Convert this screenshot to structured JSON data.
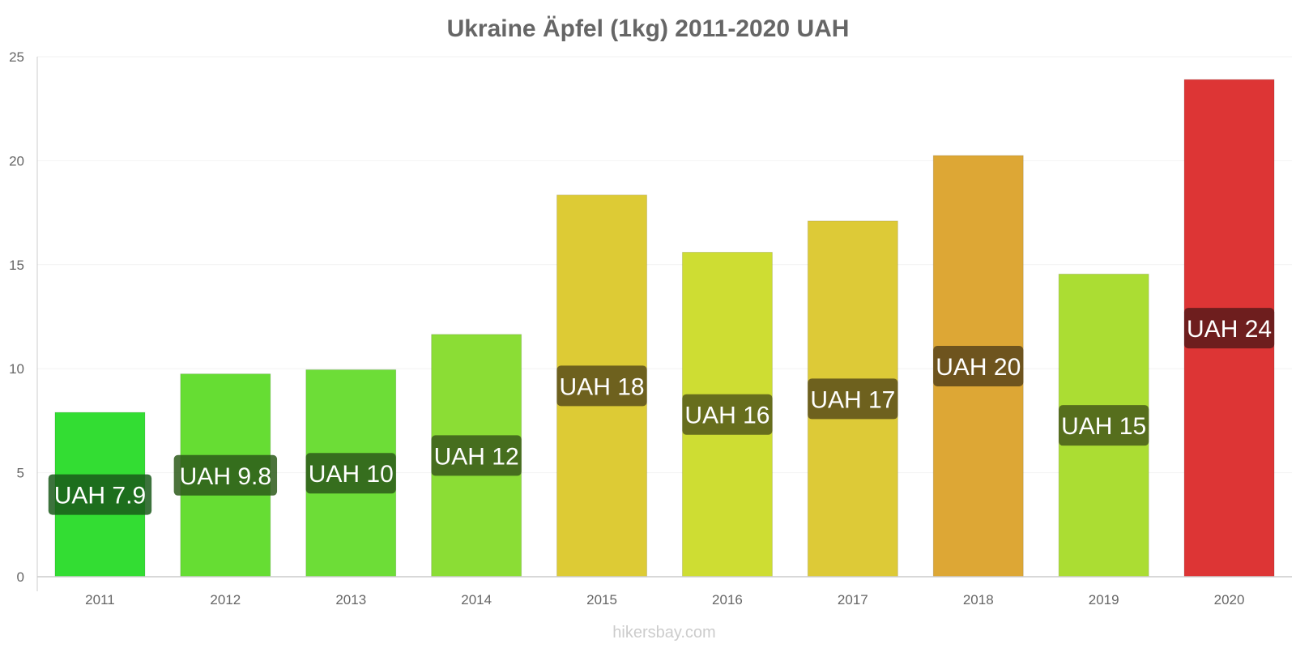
{
  "chart_data": {
    "type": "bar",
    "title": "Ukraine Äpfel (1kg) 2011-2020 UAH",
    "xlabel": "",
    "ylabel": "",
    "ylim": [
      0,
      25
    ],
    "yticks": [
      0,
      5,
      10,
      15,
      20,
      25
    ],
    "categories": [
      "2011",
      "2012",
      "2013",
      "2014",
      "2015",
      "2016",
      "2017",
      "2018",
      "2019",
      "2020"
    ],
    "values": [
      7.9,
      9.75,
      9.95,
      11.65,
      18.35,
      15.6,
      17.1,
      20.25,
      14.55,
      23.9
    ],
    "value_labels": [
      "UAH 7.9",
      "UAH 9.8",
      "UAH 10",
      "UAH 12",
      "UAH 18",
      "UAH 16",
      "UAH 17",
      "UAH 20",
      "UAH 15",
      "UAH 24"
    ],
    "bar_colors": [
      "#33dd33",
      "#66dd33",
      "#6ddd37",
      "#8bdd35",
      "#ddcb35",
      "#cedd33",
      "#ddca37",
      "#dda735",
      "#abdd33",
      "#dd3535"
    ],
    "label_bg_colors": [
      "#1a5a1a",
      "#2d5a1a",
      "#2d5a1a",
      "#3a5a1a",
      "#5a4f1a",
      "#555a1a",
      "#5a4f1a",
      "#5a451a",
      "#465a1a",
      "#5a1a1a"
    ],
    "grid": true,
    "credit": "hikersbay.com"
  }
}
